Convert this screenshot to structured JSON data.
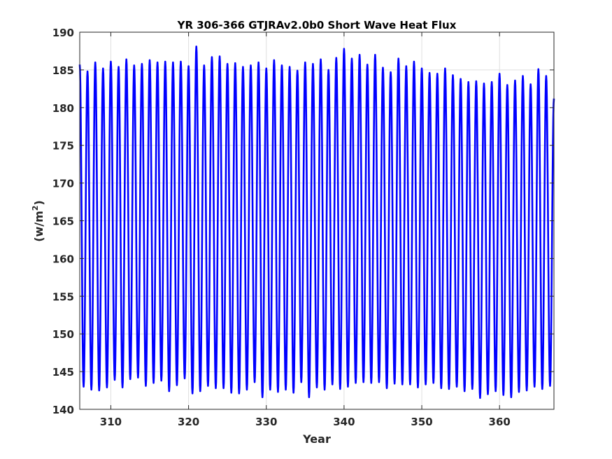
{
  "chart_data": {
    "type": "line",
    "title": "YR 306-366 GTJRAv2.0b0 Short Wave Heat Flux",
    "xlabel": "Year",
    "ylabel_base": "(w/m",
    "ylabel_sup": "2",
    "ylabel_close": ")",
    "xlim": [
      306,
      367
    ],
    "ylim": [
      140,
      190
    ],
    "xticks": [
      310,
      320,
      330,
      340,
      350,
      360
    ],
    "yticks": [
      140,
      145,
      150,
      155,
      160,
      165,
      170,
      175,
      180,
      185,
      190
    ],
    "grid": true,
    "series": [
      {
        "color": "#0000ff",
        "annual_cycle": true,
        "start": 306,
        "years": [
          306,
          307,
          308,
          309,
          310,
          311,
          312,
          313,
          314,
          315,
          316,
          317,
          318,
          319,
          320,
          321,
          322,
          323,
          324,
          325,
          326,
          327,
          328,
          329,
          330,
          331,
          332,
          333,
          334,
          335,
          336,
          337,
          338,
          339,
          340,
          341,
          342,
          343,
          344,
          345,
          346,
          347,
          348,
          349,
          350,
          351,
          352,
          353,
          354,
          355,
          356,
          357,
          358,
          359,
          360,
          361,
          362,
          363,
          364,
          365,
          366
        ],
        "annual_max": [
          185.7,
          184.8,
          186.0,
          185.2,
          186.1,
          185.4,
          186.4,
          185.6,
          185.8,
          186.3,
          186.0,
          186.1,
          186.0,
          186.1,
          185.5,
          188.1,
          185.6,
          186.7,
          186.8,
          185.8,
          185.9,
          185.4,
          185.6,
          186.0,
          185.2,
          186.3,
          185.6,
          185.4,
          184.9,
          186.0,
          185.8,
          186.4,
          185.0,
          186.6,
          187.8,
          186.5,
          187.0,
          185.7,
          187.0,
          185.3,
          184.7,
          186.5,
          185.5,
          186.1,
          185.2,
          184.6,
          184.5,
          185.2,
          184.3,
          183.8,
          183.4,
          183.5,
          183.2,
          183.4,
          184.5,
          183.0,
          183.6,
          184.2,
          183.1,
          185.1,
          184.2
        ],
        "annual_min": [
          143.0,
          142.6,
          142.5,
          142.9,
          143.9,
          142.9,
          144.0,
          144.2,
          143.1,
          143.5,
          143.8,
          142.4,
          143.2,
          144.1,
          142.1,
          142.4,
          143.1,
          142.8,
          142.8,
          142.2,
          142.1,
          142.6,
          143.6,
          141.6,
          142.6,
          142.3,
          142.6,
          142.2,
          143.6,
          141.6,
          142.9,
          142.6,
          143.3,
          142.7,
          143.0,
          143.5,
          143.6,
          143.5,
          143.6,
          142.8,
          143.4,
          143.3,
          143.3,
          142.9,
          143.3,
          143.5,
          142.8,
          142.7,
          143.0,
          142.4,
          142.7,
          141.5,
          142.0,
          142.4,
          141.9,
          141.6,
          142.3,
          142.5,
          143.0,
          142.7,
          143.1
        ],
        "end_value": 181.2
      }
    ]
  }
}
